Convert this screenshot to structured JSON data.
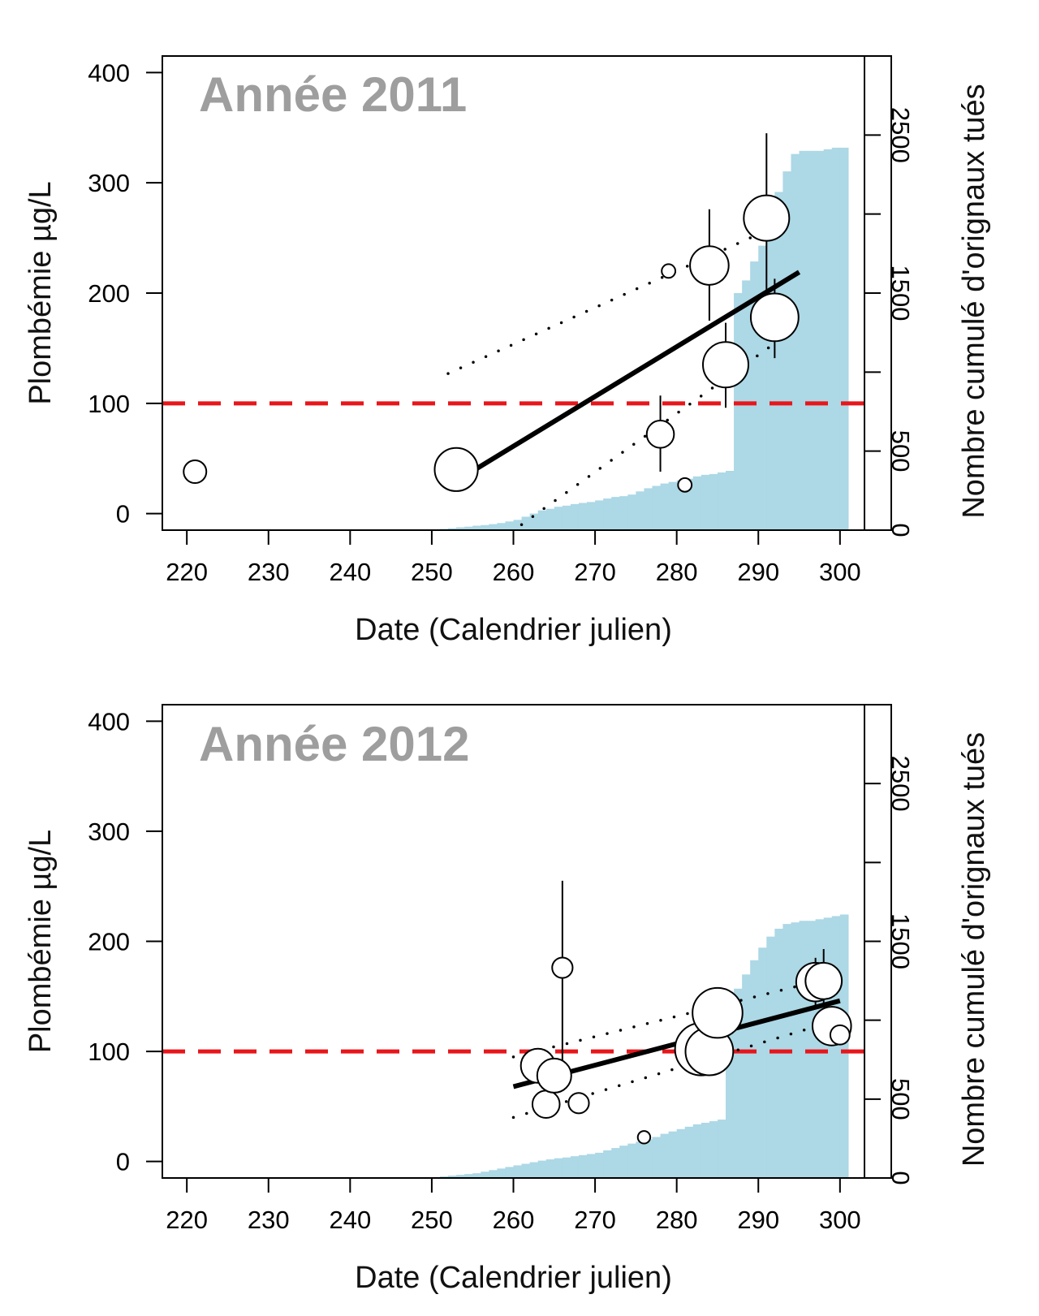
{
  "chart_data": [
    {
      "type": "scatter",
      "title": "Année 2011",
      "xlabel": "Date (Calendrier julien)",
      "ylabel": "Plombémie µg/L",
      "y2label": "Nombre cumulé d'orignaux tués",
      "xlim": [
        217,
        303
      ],
      "ylim": [
        -15,
        415
      ],
      "y2lim": [
        0,
        3000
      ],
      "x_ticks": [
        220,
        230,
        240,
        250,
        260,
        270,
        280,
        290,
        300
      ],
      "y_ticks": [
        0,
        100,
        200,
        300,
        400
      ],
      "y2_ticks": [
        0,
        500,
        1000,
        1500,
        2000,
        2500
      ],
      "y2_tick_labels": [
        "0",
        "500",
        "",
        "1500",
        "",
        "2500"
      ],
      "threshold": {
        "y": 100,
        "color": "#e8161b",
        "style": "dashed"
      },
      "points": [
        {
          "x": 221,
          "y": 38,
          "size": 1.0
        },
        {
          "x": 253,
          "y": 40,
          "size": 1.9
        },
        {
          "x": 278,
          "y": 72,
          "size": 1.2,
          "err": [
            38,
            107
          ]
        },
        {
          "x": 279,
          "y": 220,
          "size": 0.6
        },
        {
          "x": 281,
          "y": 26,
          "size": 0.6
        },
        {
          "x": 284,
          "y": 225,
          "size": 1.7,
          "err": [
            175,
            276
          ]
        },
        {
          "x": 286,
          "y": 135,
          "size": 2.0,
          "err": [
            96,
            173
          ]
        },
        {
          "x": 291,
          "y": 268,
          "size": 2.0,
          "err": [
            193,
            345
          ]
        },
        {
          "x": 292,
          "y": 178,
          "size": 2.1,
          "err": [
            141,
            213
          ]
        }
      ],
      "regression": {
        "x": [
          252,
          295
        ],
        "y": [
          25,
          219
        ]
      },
      "ci_upper": {
        "x": [
          252,
          295
        ],
        "y": [
          127,
          270
        ]
      },
      "ci_lower": {
        "x": [
          261,
          294
        ],
        "y": [
          -10,
          165
        ]
      },
      "cumulative": {
        "color": "#add8e6",
        "x": [
          250,
          251,
          252,
          253,
          254,
          255,
          256,
          257,
          258,
          259,
          260,
          261,
          262,
          263,
          264,
          265,
          266,
          267,
          268,
          269,
          270,
          271,
          272,
          273,
          274,
          275,
          276,
          277,
          278,
          279,
          280,
          281,
          282,
          283,
          284,
          285,
          286,
          287,
          288,
          289,
          290,
          291,
          292,
          293,
          294,
          295,
          296,
          297,
          298,
          299,
          300
        ],
        "values": [
          5,
          8,
          12,
          18,
          22,
          28,
          32,
          38,
          45,
          55,
          65,
          85,
          105,
          125,
          135,
          148,
          155,
          165,
          172,
          178,
          188,
          200,
          210,
          215,
          225,
          245,
          265,
          280,
          295,
          305,
          315,
          325,
          340,
          350,
          355,
          365,
          375,
          1500,
          1580,
          1700,
          1800,
          2030,
          2140,
          2270,
          2380,
          2400,
          2400,
          2400,
          2410,
          2420,
          2420
        ]
      }
    },
    {
      "type": "scatter",
      "title": "Année 2012",
      "xlabel": "Date (Calendrier julien)",
      "ylabel": "Plombémie µg/L",
      "y2label": "Nombre cumulé d'orignaux tués",
      "xlim": [
        217,
        303
      ],
      "ylim": [
        -15,
        415
      ],
      "y2lim": [
        0,
        3000
      ],
      "x_ticks": [
        220,
        230,
        240,
        250,
        260,
        270,
        280,
        290,
        300
      ],
      "y_ticks": [
        0,
        100,
        200,
        300,
        400
      ],
      "y2_ticks": [
        0,
        500,
        1000,
        1500,
        2000,
        2500
      ],
      "y2_tick_labels": [
        "0",
        "500",
        "",
        "1500",
        "",
        "2500"
      ],
      "threshold": {
        "y": 100,
        "color": "#e8161b",
        "style": "dashed"
      },
      "points": [
        {
          "x": 263,
          "y": 87,
          "size": 1.5
        },
        {
          "x": 264,
          "y": 52,
          "size": 1.2
        },
        {
          "x": 265,
          "y": 78,
          "size": 1.5
        },
        {
          "x": 266,
          "y": 176,
          "size": 0.9,
          "err": [
            80,
            255
          ]
        },
        {
          "x": 268,
          "y": 53,
          "size": 0.9
        },
        {
          "x": 276,
          "y": 22,
          "size": 0.55
        },
        {
          "x": 283,
          "y": 102,
          "size": 2.3
        },
        {
          "x": 284,
          "y": 100,
          "size": 2.1
        },
        {
          "x": 285,
          "y": 135,
          "size": 2.2,
          "err": [
            115,
            155
          ]
        },
        {
          "x": 297,
          "y": 163,
          "size": 1.7,
          "err": [
            140,
            185
          ]
        },
        {
          "x": 298,
          "y": 164,
          "size": 1.6,
          "err": [
            140,
            193
          ]
        },
        {
          "x": 299,
          "y": 123,
          "size": 1.7,
          "err": [
            105,
            140
          ]
        },
        {
          "x": 300,
          "y": 115,
          "size": 0.85
        }
      ],
      "regression": {
        "x": [
          260,
          300
        ],
        "y": [
          68,
          146
        ]
      },
      "ci_upper": {
        "x": [
          260,
          299
        ],
        "y": [
          95,
          167
        ]
      },
      "ci_lower": {
        "x": [
          260,
          299
        ],
        "y": [
          40,
          127
        ]
      },
      "cumulative": {
        "color": "#add8e6",
        "x": [
          250,
          251,
          252,
          253,
          254,
          255,
          256,
          257,
          258,
          259,
          260,
          261,
          262,
          263,
          264,
          265,
          266,
          267,
          268,
          269,
          270,
          271,
          272,
          273,
          274,
          275,
          276,
          277,
          278,
          279,
          280,
          281,
          282,
          283,
          284,
          285,
          286,
          287,
          288,
          289,
          290,
          291,
          292,
          293,
          294,
          295,
          296,
          297,
          298,
          299,
          300
        ],
        "values": [
          5,
          10,
          15,
          20,
          25,
          30,
          40,
          50,
          60,
          70,
          80,
          90,
          100,
          110,
          118,
          125,
          130,
          138,
          145,
          152,
          160,
          175,
          190,
          205,
          218,
          230,
          245,
          260,
          280,
          295,
          310,
          325,
          340,
          350,
          360,
          370,
          1100,
          1200,
          1290,
          1380,
          1460,
          1530,
          1580,
          1610,
          1620,
          1630,
          1630,
          1640,
          1650,
          1660,
          1670
        ]
      }
    }
  ]
}
